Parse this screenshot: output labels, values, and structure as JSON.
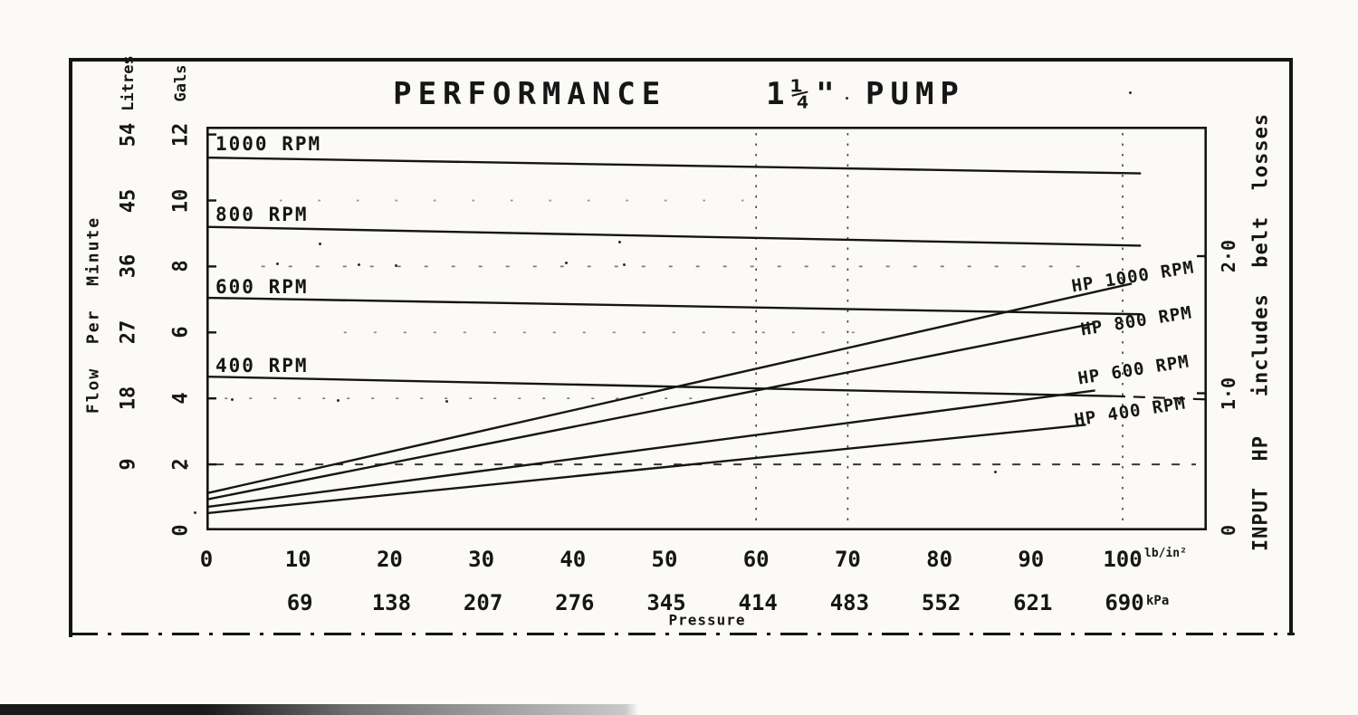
{
  "title": "PERFORMANCE    1¼\" PUMP",
  "left_axis": {
    "flow_label": "Flow  Per  Minute",
    "litres_unit": "Litres",
    "gals_unit": "Gals",
    "litres_ticks": [
      "54",
      "45",
      "36",
      "27",
      "18",
      "9"
    ],
    "gals_ticks": [
      "12",
      "10",
      "8",
      "6",
      "4",
      "2",
      "0"
    ]
  },
  "right_axis": {
    "label": "INPUT  HP   includes  belt  losses",
    "ticks": [
      "2·0",
      "1·0",
      "0"
    ]
  },
  "x_axis": {
    "title": "Pressure",
    "psi_ticks": [
      "0",
      "10",
      "20",
      "30",
      "40",
      "50",
      "60",
      "70",
      "80",
      "90",
      "100"
    ],
    "psi_unit": "lb/in²",
    "kpa_ticks": [
      "69",
      "138",
      "207",
      "276",
      "345",
      "414",
      "483",
      "552",
      "621",
      "690"
    ],
    "kpa_unit": "kPa"
  },
  "chart_data": {
    "type": "line",
    "title": "PERFORMANCE 1¼\" PUMP",
    "xlabel": "Pressure",
    "x_units": [
      "lb/in²",
      "kPa"
    ],
    "xlim_psi": [
      0,
      109
    ],
    "x_ticks_psi": [
      0,
      10,
      20,
      30,
      40,
      50,
      60,
      70,
      80,
      90,
      100
    ],
    "x_ticks_kpa": [
      69,
      138,
      207,
      276,
      345,
      414,
      483,
      552,
      621,
      690
    ],
    "left_ylabel": "Flow Per Minute",
    "left_units": [
      "Litres",
      "Gals"
    ],
    "left_ylim_gals": [
      0,
      12.2
    ],
    "left_ticks_gals": [
      12,
      10,
      8,
      6,
      4,
      2,
      0
    ],
    "left_ticks_litres": [
      54,
      45,
      36,
      27,
      18,
      9
    ],
    "right_ylabel": "INPUT HP includes belt losses",
    "right_ylim_hp": [
      0,
      2.95
    ],
    "right_ticks_hp": [
      2,
      1,
      0
    ],
    "grid": {
      "vertical_dotted_psi": [
        60,
        70,
        100
      ],
      "horizontal_dotted_gals": [
        10,
        8,
        6,
        4,
        2
      ]
    },
    "flow_series": [
      {
        "name": "1000 RPM",
        "units": "gals",
        "points": [
          [
            0,
            11.3
          ],
          [
            102,
            10.82
          ]
        ]
      },
      {
        "name": "800 RPM",
        "units": "gals",
        "points": [
          [
            0,
            9.2
          ],
          [
            102,
            8.63
          ]
        ]
      },
      {
        "name": "600 RPM",
        "units": "gals",
        "points": [
          [
            0,
            7.05
          ],
          [
            102,
            6.55
          ]
        ]
      },
      {
        "name": "400 RPM",
        "units": "gals",
        "points": [
          [
            0,
            4.66
          ],
          [
            99,
            4.07
          ]
        ],
        "dashed_tail": [
          [
            99,
            4.07
          ],
          [
            109,
            3.97
          ]
        ]
      }
    ],
    "hp_series": [
      {
        "name": "HP 1000 RPM",
        "units": "hp",
        "points": [
          [
            0,
            0.27
          ],
          [
            101,
            1.8
          ]
        ]
      },
      {
        "name": "HP 800 RPM",
        "units": "hp",
        "points": [
          [
            0,
            0.225
          ],
          [
            97,
            1.51
          ]
        ]
      },
      {
        "name": "HP 600 RPM",
        "units": "hp",
        "points": [
          [
            0,
            0.17
          ],
          [
            97,
            1.02
          ]
        ]
      },
      {
        "name": "HP 400 RPM",
        "units": "hp",
        "points": [
          [
            0,
            0.125
          ],
          [
            96,
            0.77
          ]
        ]
      }
    ]
  }
}
